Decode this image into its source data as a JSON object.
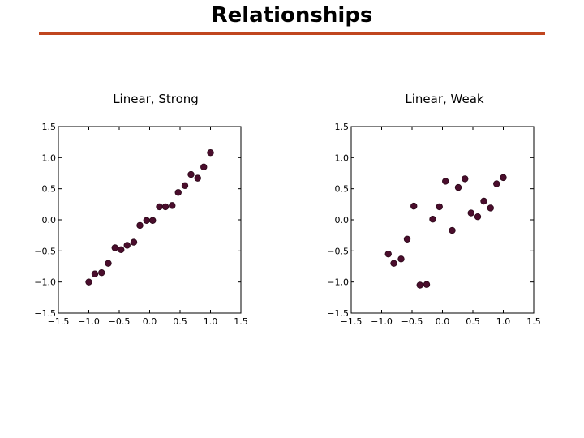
{
  "slide": {
    "title": "Relationships"
  },
  "colors": {
    "rule": "#c0461f",
    "point": "#4a0d2c",
    "axes": "#000000"
  },
  "chart_data": [
    {
      "type": "scatter",
      "title": "Linear, Strong",
      "xlabel": "",
      "ylabel": "",
      "xlim": [
        -1.5,
        1.5
      ],
      "ylim": [
        -1.5,
        1.5
      ],
      "xticks": [
        "−1.5",
        "−1.0",
        "−0.5",
        "0.0",
        "0.5",
        "1.0",
        "1.5"
      ],
      "yticks": [
        "1.5",
        "1.0",
        "0.5",
        "0.0",
        "−0.5",
        "−1.0",
        "−1.5"
      ],
      "grid": false,
      "points": [
        [
          -1.0,
          -1.0
        ],
        [
          -0.9,
          -0.87
        ],
        [
          -0.79,
          -0.85
        ],
        [
          -0.68,
          -0.7
        ],
        [
          -0.57,
          -0.45
        ],
        [
          -0.47,
          -0.48
        ],
        [
          -0.37,
          -0.41
        ],
        [
          -0.26,
          -0.36
        ],
        [
          -0.16,
          -0.09
        ],
        [
          -0.05,
          -0.01
        ],
        [
          0.05,
          -0.01
        ],
        [
          0.16,
          0.21
        ],
        [
          0.26,
          0.21
        ],
        [
          0.37,
          0.23
        ],
        [
          0.47,
          0.44
        ],
        [
          0.58,
          0.55
        ],
        [
          0.68,
          0.73
        ],
        [
          0.79,
          0.67
        ],
        [
          0.89,
          0.85
        ],
        [
          1.0,
          1.08
        ]
      ]
    },
    {
      "type": "scatter",
      "title": "Linear, Weak",
      "xlabel": "",
      "ylabel": "",
      "xlim": [
        -1.5,
        1.5
      ],
      "ylim": [
        -1.5,
        1.5
      ],
      "xticks": [
        "−1.5",
        "−1.0",
        "−0.5",
        "0.0",
        "0.5",
        "1.0",
        "1.5"
      ],
      "yticks": [
        "1.5",
        "1.0",
        "0.5",
        "0.0",
        "−0.5",
        "−1.0",
        "−1.5"
      ],
      "grid": false,
      "points": [
        [
          -0.89,
          -0.55
        ],
        [
          -0.8,
          -0.7
        ],
        [
          -0.68,
          -0.63
        ],
        [
          -0.58,
          -0.31
        ],
        [
          -0.47,
          0.22
        ],
        [
          -0.37,
          -1.05
        ],
        [
          -0.26,
          -1.04
        ],
        [
          -0.16,
          0.01
        ],
        [
          -0.05,
          0.21
        ],
        [
          0.05,
          0.62
        ],
        [
          0.16,
          -0.17
        ],
        [
          0.26,
          0.52
        ],
        [
          0.37,
          0.66
        ],
        [
          0.47,
          0.11
        ],
        [
          0.58,
          0.05
        ],
        [
          0.68,
          0.3
        ],
        [
          0.79,
          0.19
        ],
        [
          0.89,
          0.58
        ],
        [
          1.0,
          0.68
        ]
      ]
    }
  ]
}
